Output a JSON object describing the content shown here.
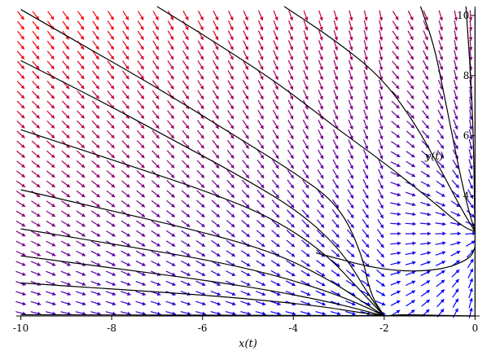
{
  "chart_data": {
    "type": "vector-field",
    "title": "",
    "xlabel": "x(t)",
    "ylabel": "y(t)",
    "xlim": [
      -10.1,
      0.1
    ],
    "ylim": [
      0,
      10.3
    ],
    "x_ticks": [
      -10,
      -8,
      -6,
      -4,
      -2,
      0
    ],
    "y_ticks": [
      4,
      6,
      8,
      10
    ],
    "grid": false,
    "field_grid": {
      "x_start": -10,
      "x_end": 0,
      "x_step": 0.33,
      "y_start": 0.1,
      "y_end": 10.1,
      "y_step": 0.33
    },
    "color_scale": {
      "high_y": "#ff0000",
      "low_y": "#0000ff"
    },
    "trajectory_color": "#000000",
    "trajectories": [
      [
        [
          -10,
          10.2
        ],
        [
          -8.5,
          8.9
        ],
        [
          -7,
          7.6
        ],
        [
          -5.5,
          6.2
        ],
        [
          -4,
          4.8
        ],
        [
          -3,
          3.7
        ],
        [
          -2.5,
          2.1
        ],
        [
          -2.3,
          0.7
        ],
        [
          -2,
          0
        ]
      ],
      [
        [
          -10,
          8.5
        ],
        [
          -8.3,
          7.2
        ],
        [
          -6.7,
          5.9
        ],
        [
          -5.1,
          4.6
        ],
        [
          -3.8,
          3.4
        ],
        [
          -2.9,
          2.1
        ],
        [
          -2.3,
          0.6
        ],
        [
          -2,
          0
        ]
      ],
      [
        [
          -10,
          6.2
        ],
        [
          -8,
          5.2
        ],
        [
          -6,
          4.2
        ],
        [
          -4.5,
          3.3
        ],
        [
          -3.3,
          2.1
        ],
        [
          -2.5,
          0.8
        ],
        [
          -2,
          0
        ]
      ],
      [
        [
          -10,
          4.2
        ],
        [
          -8,
          3.5
        ],
        [
          -6,
          2.8
        ],
        [
          -4.4,
          2.1
        ],
        [
          -3.2,
          1.2
        ],
        [
          -2.4,
          0.4
        ],
        [
          -2,
          0
        ]
      ],
      [
        [
          -10,
          2.9
        ],
        [
          -8,
          2.4
        ],
        [
          -6,
          1.9
        ],
        [
          -4.5,
          1.4
        ],
        [
          -3.2,
          0.8
        ],
        [
          -2.4,
          0.3
        ],
        [
          -2,
          0
        ]
      ],
      [
        [
          -10,
          2.0
        ],
        [
          -8,
          1.6
        ],
        [
          -6,
          1.2
        ],
        [
          -4.5,
          0.85
        ],
        [
          -3.3,
          0.5
        ],
        [
          -2.5,
          0.2
        ],
        [
          -2,
          0
        ]
      ],
      [
        [
          -10,
          1.1
        ],
        [
          -8,
          0.9
        ],
        [
          -6,
          0.7
        ],
        [
          -4.5,
          0.5
        ],
        [
          -3.3,
          0.3
        ],
        [
          -2.6,
          0.13
        ],
        [
          -2,
          0
        ]
      ],
      [
        [
          -7.0,
          10.3
        ],
        [
          -5.5,
          8.9
        ],
        [
          -4.2,
          7.6
        ],
        [
          -3.1,
          6.3
        ],
        [
          -2.0,
          5.1
        ],
        [
          -1.0,
          3.9
        ],
        [
          -0.3,
          3.0
        ],
        [
          0,
          2.8
        ]
      ],
      [
        [
          -4.2,
          10.3
        ],
        [
          -3.1,
          9.2
        ],
        [
          -2.1,
          8.0
        ],
        [
          -1.4,
          6.6
        ],
        [
          -0.8,
          5.0
        ],
        [
          -0.35,
          3.7
        ],
        [
          -0.08,
          3.0
        ],
        [
          0,
          2.8
        ]
      ],
      [
        [
          -1.2,
          10.3
        ],
        [
          -0.9,
          9.0
        ],
        [
          -0.7,
          7.5
        ],
        [
          -0.5,
          6.0
        ],
        [
          -0.3,
          4.5
        ],
        [
          -0.12,
          3.4
        ],
        [
          0,
          2.8
        ]
      ],
      [
        [
          -0.2,
          10.3
        ],
        [
          -0.05,
          7.0
        ],
        [
          0,
          2.8
        ]
      ],
      [
        [
          -3.5,
          2.1
        ],
        [
          -2.0,
          1.5
        ],
        [
          -0.8,
          1.5
        ],
        [
          -0.1,
          1.9
        ],
        [
          0,
          2.3
        ]
      ],
      [
        [
          -2,
          0
        ],
        [
          -1.6,
          0.05
        ],
        [
          -0.8,
          0.02
        ],
        [
          0,
          0
        ]
      ],
      [
        [
          -10,
          0.04
        ],
        [
          -6,
          0.03
        ],
        [
          -2,
          0.01
        ],
        [
          0,
          0
        ]
      ],
      [
        [
          0,
          10.2
        ],
        [
          0,
          0
        ]
      ]
    ],
    "annotation": {
      "text": "y(t)",
      "x": -0.9,
      "y": 5.2
    }
  }
}
